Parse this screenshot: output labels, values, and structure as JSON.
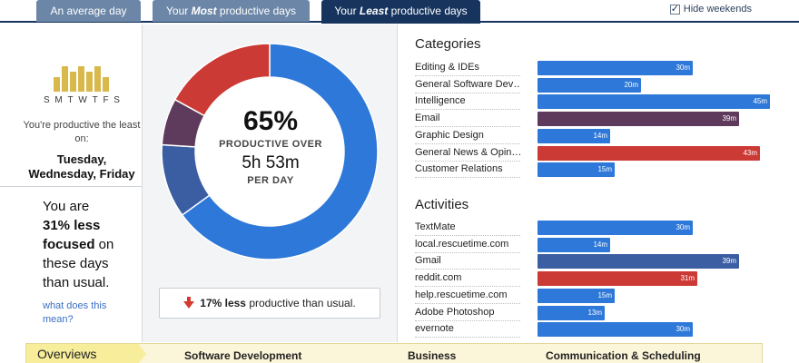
{
  "tabs": [
    {
      "label": "An average day",
      "active": false
    },
    {
      "label_pre": "Your ",
      "label_em": "Most",
      "label_post": " productive days",
      "active": false
    },
    {
      "label_pre": "Your ",
      "label_em": "Least",
      "label_post": " productive days",
      "active": true
    }
  ],
  "hide_weekends": {
    "label": "Hide weekends",
    "checked": true
  },
  "left": {
    "day_letters": [
      "S",
      "M",
      "T",
      "W",
      "T",
      "F",
      "S"
    ],
    "least_label": "You're productive the least on:",
    "least_days": "Tuesday, Wednesday, Friday",
    "focus_pre": "You are",
    "focus_bold": "31% less focused",
    "focus_post": " on these days than usual.",
    "link": "what does this mean?"
  },
  "center": {
    "percent": "65%",
    "productive_over": "PRODUCTIVE OVER",
    "hours": "5h 53m",
    "per_day": "PER DAY",
    "compare_bold": "17% less",
    "compare_rest": " productive than usual.",
    "donut": [
      {
        "label": "productive",
        "fraction": 0.65,
        "color": "#2d78d8"
      },
      {
        "label": "neutral-blue",
        "fraction": 0.11,
        "color": "#3b5ea3"
      },
      {
        "label": "neutral-purple",
        "fraction": 0.07,
        "color": "#5e3b5c"
      },
      {
        "label": "distracting",
        "fraction": 0.17,
        "color": "#cc3a35"
      }
    ]
  },
  "categories": {
    "title": "Categories",
    "max_minutes": 45,
    "items": [
      {
        "label": "Editing & IDEs",
        "value": "30m",
        "minutes": 30,
        "color": "#2d78d8"
      },
      {
        "label": "General Software Dev…",
        "value": "20m",
        "minutes": 20,
        "color": "#2d78d8"
      },
      {
        "label": "Intelligence",
        "value": "45m",
        "minutes": 45,
        "color": "#2d78d8"
      },
      {
        "label": "Email",
        "value": "39m",
        "minutes": 39,
        "color": "#5e3b5c"
      },
      {
        "label": "Graphic Design",
        "value": "14m",
        "minutes": 14,
        "color": "#2d78d8"
      },
      {
        "label": "General News & Opin…",
        "value": "43m",
        "minutes": 43,
        "color": "#cc3a35"
      },
      {
        "label": "Customer Relations",
        "value": "15m",
        "minutes": 15,
        "color": "#2d78d8"
      }
    ]
  },
  "activities": {
    "title": "Activities",
    "max_minutes": 45,
    "items": [
      {
        "label": "TextMate",
        "value": "30m",
        "minutes": 30,
        "color": "#2d78d8"
      },
      {
        "label": "local.rescuetime.com",
        "value": "14m",
        "minutes": 14,
        "color": "#2d78d8"
      },
      {
        "label": "Gmail",
        "value": "39m",
        "minutes": 39,
        "color": "#3b5ea3"
      },
      {
        "label": "reddit.com",
        "value": "31m",
        "minutes": 31,
        "color": "#cc3a35"
      },
      {
        "label": "help.rescuetime.com",
        "value": "15m",
        "minutes": 15,
        "color": "#2d78d8"
      },
      {
        "label": "Adobe Photoshop",
        "value": "13m",
        "minutes": 13,
        "color": "#2d78d8"
      },
      {
        "label": "evernote",
        "value": "30m",
        "minutes": 30,
        "color": "#2d78d8"
      }
    ]
  },
  "bottom": {
    "overviews": "Overviews",
    "items": [
      "Software Development",
      "Business",
      "Communication & Scheduling"
    ]
  }
}
